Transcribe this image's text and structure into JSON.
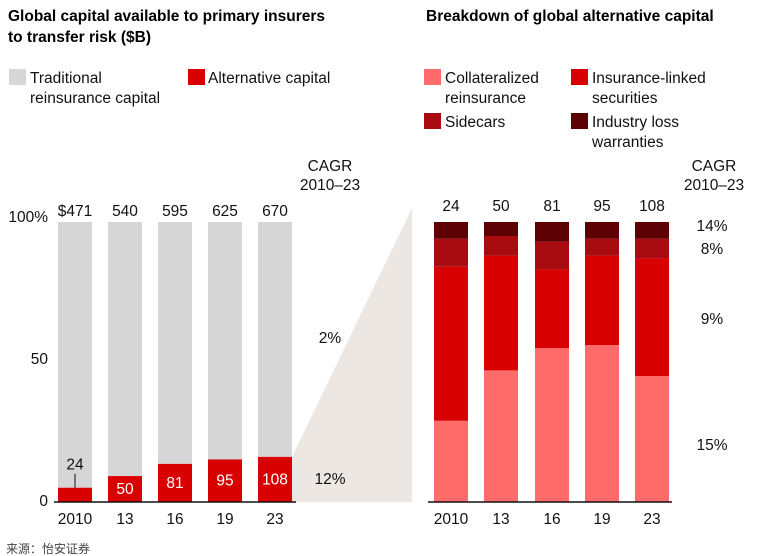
{
  "chart_data": [
    {
      "type": "bar",
      "stacked": true,
      "normalized": true,
      "title": "Global capital available to primary insurers to transfer risk ($B)",
      "title_lines": [
        "Global capital available to primary insurers",
        "to transfer risk ($B)"
      ],
      "categories": [
        "2010",
        "13",
        "16",
        "19",
        "23"
      ],
      "totals": [
        471,
        540,
        595,
        625,
        670
      ],
      "total_labels": [
        "$471",
        "540",
        "595",
        "625",
        "670"
      ],
      "series": [
        {
          "name": "Alternative capital",
          "legend_lines": [
            "Alternative capital"
          ],
          "values": [
            24,
            50,
            81,
            95,
            108
          ],
          "color": "#d80000"
        },
        {
          "name": "Traditional reinsurance capital",
          "legend_lines": [
            "Traditional",
            "reinsurance capital"
          ],
          "values": [
            447,
            490,
            514,
            530,
            562
          ],
          "color": "#d6d6d6"
        }
      ],
      "y_ticks": [
        "100%",
        "50",
        "0"
      ],
      "ylim": [
        0,
        100
      ],
      "cagr_header": [
        "CAGR",
        "2010–23"
      ],
      "cagr": [
        {
          "series": "Traditional reinsurance capital",
          "label": "2%",
          "color": "#111111"
        },
        {
          "series": "Alternative capital",
          "label": "12%",
          "color": "#d80000"
        }
      ]
    },
    {
      "type": "bar",
      "stacked": true,
      "normalized": true,
      "title": "Breakdown of global alternative capital",
      "categories": [
        "2010",
        "13",
        "16",
        "19",
        "23"
      ],
      "total_labels": [
        "24",
        "50",
        "81",
        "95",
        "108"
      ],
      "series": [
        {
          "name": "Collateralized reinsurance",
          "legend_lines": [
            "Collateralized",
            "reinsurance"
          ],
          "values": [
            29,
            47,
            55,
            56,
            45
          ],
          "color": "#ff6b6b"
        },
        {
          "name": "Insurance-linked securities",
          "legend_lines": [
            "Insurance-linked",
            "securities"
          ],
          "values": [
            55,
            41,
            28,
            32,
            42
          ],
          "color": "#d80000"
        },
        {
          "name": "Sidecars",
          "legend_lines": [
            "Sidecars"
          ],
          "values": [
            10,
            7,
            10,
            6,
            7
          ],
          "color": "#a80c10"
        },
        {
          "name": "Industry loss warranties",
          "legend_lines": [
            "Industry loss",
            "warranties"
          ],
          "values": [
            6,
            5,
            7,
            6,
            6
          ],
          "color": "#5c0004"
        }
      ],
      "ylim": [
        0,
        100
      ],
      "cagr_header": [
        "CAGR",
        "2010–23"
      ],
      "cagr": [
        {
          "series": "Industry loss warranties",
          "label": "14%"
        },
        {
          "series": "Sidecars",
          "label": "8%"
        },
        {
          "series": "Insurance-linked securities",
          "label": "9%"
        },
        {
          "series": "Collateralized reinsurance",
          "label": "15%"
        }
      ]
    }
  ],
  "source": "来源：怡安证券"
}
